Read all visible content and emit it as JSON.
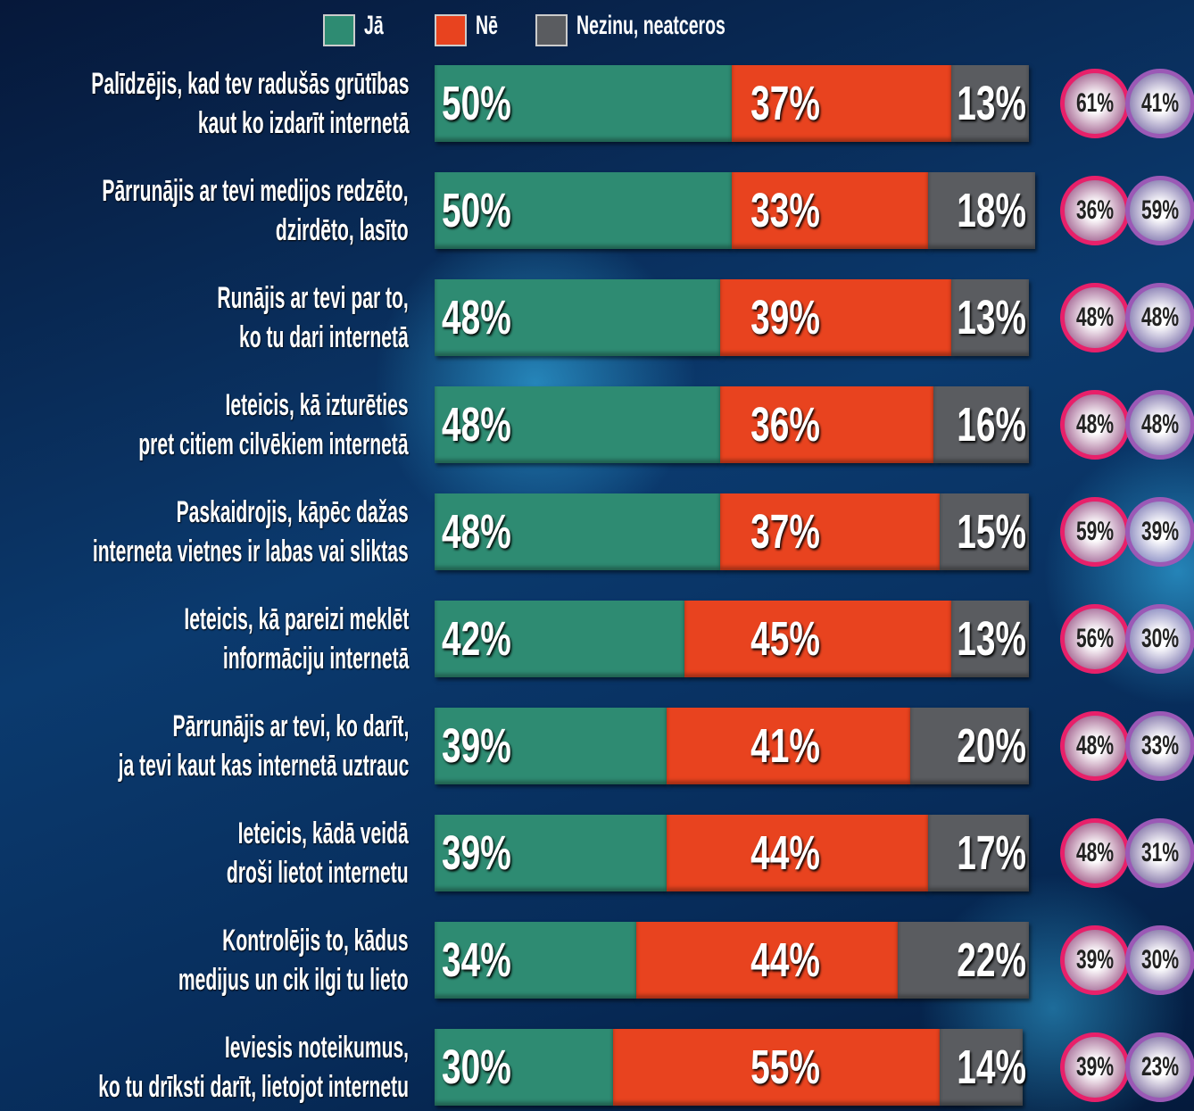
{
  "chart_data": {
    "type": "bar",
    "orientation": "horizontal",
    "stacked": true,
    "categories": [
      "Palīdzējis, kad tev radušās grūtības\nkaut ko izdarīt internetā",
      "Pārrunājis ar tevi medijos redzēto,\ndzirdēto, lasīto",
      "Runājis ar tevi par to,\nko tu dari internetā",
      "Ieteicis, kā izturēties\npret citiem cilvēkiem internetā",
      "Paskaidrojis, kāpēc dažas\ninterneta vietnes ir labas vai sliktas",
      "Ieteicis, kā pareizi meklēt\ninformāciju internetā",
      "Pārrunājis ar tevi, ko darīt,\nja tevi kaut kas internetā uztrauc",
      "Ieteicis, kādā veidā\ndroši lietot internetu",
      "Kontrolējis to, kādus\nmedijus un cik ilgi tu lieto",
      "Ieviesis noteikumus,\nko tu drīksti darīt, lietojot internetu"
    ],
    "xlim": [
      0,
      100
    ],
    "series": [
      {
        "name": "Jā",
        "color": "#2e8b72",
        "values": [
          50,
          50,
          48,
          48,
          48,
          42,
          39,
          39,
          34,
          30
        ],
        "value_labels": [
          "50%",
          "50%",
          "48%",
          "48%",
          "48%",
          "42%",
          "39%",
          "39%",
          "34%",
          "30%"
        ]
      },
      {
        "name": "Nē",
        "color": "#e8431f",
        "values": [
          37,
          33,
          39,
          36,
          37,
          45,
          41,
          44,
          44,
          55
        ],
        "value_labels": [
          "37%",
          "33%",
          "39%",
          "36%",
          "37%",
          "45%",
          "41%",
          "44%",
          "44%",
          "55%"
        ]
      },
      {
        "name": "Nezinu, neatceros",
        "color": "#5a5c60",
        "values": [
          13,
          18,
          13,
          16,
          15,
          13,
          20,
          17,
          22,
          14
        ],
        "value_labels": [
          "13%",
          "18%",
          "13%",
          "16%",
          "15%",
          "13%",
          "20%",
          "17%",
          "22%",
          "14%"
        ]
      }
    ],
    "circles": [
      {
        "color": "#e8206a",
        "values": [
          61,
          36,
          48,
          48,
          59,
          56,
          48,
          48,
          39,
          39
        ],
        "value_labels": [
          "61%",
          "36%",
          "48%",
          "48%",
          "59%",
          "56%",
          "48%",
          "48%",
          "39%",
          "39%"
        ]
      },
      {
        "color": "#9b59b6",
        "values": [
          41,
          59,
          48,
          48,
          39,
          30,
          33,
          31,
          30,
          23
        ],
        "value_labels": [
          "41%",
          "59%",
          "48%",
          "48%",
          "39%",
          "30%",
          "33%",
          "31%",
          "30%",
          "23%"
        ]
      }
    ]
  }
}
